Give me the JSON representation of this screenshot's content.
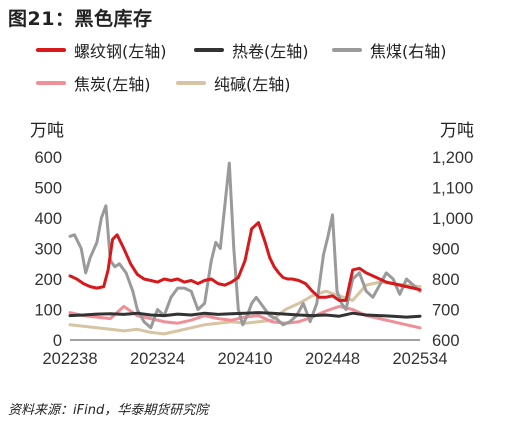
{
  "title": "图21：黑色库存",
  "source": "资料来源：iFind，华泰期货研究院",
  "legend": [
    {
      "label": "螺纹钢(左轴)",
      "color": "#d7191c"
    },
    {
      "label": "热卷(左轴)",
      "color": "#333333"
    },
    {
      "label": "焦煤(右轴)",
      "color": "#9a9a9a"
    },
    {
      "label": "焦炭(左轴)",
      "color": "#f08f97"
    },
    {
      "label": "纯碱(左轴)",
      "color": "#d6c4a3"
    }
  ],
  "chart_data": {
    "type": "line",
    "x_ticks": [
      "202238",
      "202324",
      "202410",
      "202448",
      "202534"
    ],
    "left_axis": {
      "label": "万吨",
      "min": 0,
      "max": 600,
      "ticks": [
        0,
        100,
        200,
        300,
        400,
        500,
        600
      ]
    },
    "right_axis": {
      "label": "万吨",
      "min": 600,
      "max": 1200,
      "ticks": [
        "600",
        "700",
        "800",
        "900",
        "1,000",
        "1,100",
        "1,200"
      ]
    },
    "x_range": [
      0,
      156
    ],
    "series": [
      {
        "name": "螺纹钢(左轴)",
        "axis": "left",
        "color": "#d7191c",
        "x": [
          0,
          3,
          6,
          9,
          12,
          15,
          17,
          19,
          21,
          24,
          27,
          30,
          33,
          36,
          39,
          42,
          45,
          48,
          51,
          54,
          57,
          60,
          63,
          66,
          69,
          72,
          75,
          78,
          81,
          84,
          87,
          89,
          91,
          93,
          95,
          97,
          99,
          102,
          105,
          108,
          111,
          114,
          117,
          120,
          123,
          126,
          129,
          132,
          135,
          138,
          141,
          144,
          147,
          150,
          153,
          156
        ],
        "y": [
          210,
          200,
          185,
          175,
          170,
          175,
          230,
          330,
          345,
          300,
          250,
          215,
          200,
          195,
          190,
          200,
          195,
          200,
          190,
          195,
          185,
          195,
          200,
          185,
          180,
          190,
          205,
          260,
          365,
          385,
          320,
          270,
          240,
          220,
          205,
          200,
          200,
          195,
          185,
          160,
          140,
          140,
          145,
          130,
          130,
          230,
          235,
          220,
          210,
          200,
          190,
          185,
          180,
          175,
          170,
          165
        ]
      },
      {
        "name": "热卷(左轴)",
        "axis": "left",
        "color": "#333333",
        "x": [
          0,
          6,
          12,
          18,
          24,
          30,
          36,
          42,
          48,
          54,
          60,
          66,
          72,
          78,
          84,
          90,
          96,
          102,
          108,
          114,
          120,
          126,
          132,
          138,
          144,
          150,
          156
        ],
        "y": [
          80,
          82,
          85,
          86,
          84,
          88,
          82,
          80,
          85,
          82,
          88,
          84,
          86,
          88,
          90,
          88,
          85,
          82,
          80,
          82,
          78,
          88,
          82,
          80,
          78,
          75,
          78
        ]
      },
      {
        "name": "焦煤(右轴)",
        "axis": "right",
        "color": "#9a9a9a",
        "x": [
          0,
          2,
          5,
          7,
          9,
          12,
          14,
          16,
          18,
          20,
          22,
          25,
          28,
          30,
          33,
          36,
          39,
          42,
          45,
          48,
          51,
          54,
          57,
          60,
          63,
          65,
          67,
          69,
          71,
          73,
          75,
          77,
          79,
          81,
          83,
          85,
          87,
          89,
          92,
          95,
          98,
          101,
          104,
          107,
          110,
          113,
          115,
          117,
          119,
          121,
          123,
          126,
          129,
          132,
          135,
          138,
          141,
          144,
          147,
          150,
          153,
          156
        ],
        "y": [
          940,
          945,
          900,
          820,
          870,
          920,
          1000,
          1040,
          860,
          840,
          850,
          820,
          760,
          700,
          660,
          640,
          700,
          680,
          740,
          770,
          770,
          760,
          700,
          720,
          860,
          920,
          900,
          1040,
          1180,
          900,
          700,
          650,
          680,
          720,
          740,
          720,
          700,
          680,
          670,
          650,
          660,
          680,
          720,
          660,
          720,
          880,
          940,
          1010,
          760,
          720,
          700,
          800,
          820,
          760,
          740,
          780,
          820,
          800,
          750,
          800,
          780,
          760
        ]
      },
      {
        "name": "焦炭(左轴)",
        "axis": "left",
        "color": "#f08f97",
        "x": [
          0,
          6,
          12,
          18,
          24,
          30,
          36,
          42,
          48,
          54,
          60,
          66,
          72,
          78,
          84,
          90,
          96,
          102,
          108,
          114,
          120,
          126,
          132,
          138,
          144,
          150,
          156
        ],
        "y": [
          90,
          80,
          75,
          70,
          110,
          80,
          70,
          60,
          55,
          65,
          80,
          70,
          65,
          75,
          80,
          60,
          55,
          60,
          75,
          95,
          110,
          100,
          80,
          70,
          60,
          50,
          40
        ]
      },
      {
        "name": "纯碱(左轴)",
        "axis": "left",
        "color": "#d6c4a3",
        "x": [
          0,
          6,
          12,
          18,
          24,
          30,
          36,
          42,
          48,
          54,
          60,
          66,
          72,
          78,
          84,
          90,
          96,
          102,
          108,
          114,
          120,
          126,
          132,
          138,
          144,
          150,
          156
        ],
        "y": [
          50,
          45,
          40,
          35,
          30,
          35,
          25,
          20,
          30,
          40,
          50,
          55,
          60,
          55,
          60,
          65,
          100,
          120,
          145,
          160,
          145,
          130,
          180,
          190,
          185,
          180,
          175
        ]
      }
    ]
  }
}
